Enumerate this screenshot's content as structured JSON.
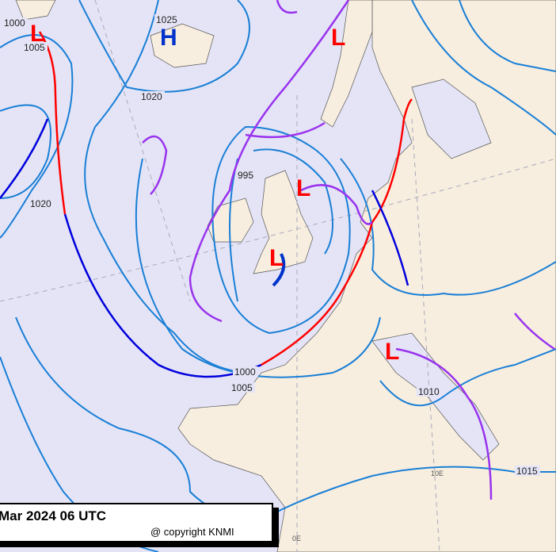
{
  "isobar_labels": [
    "1000",
    "1005",
    "1025",
    "1020",
    "1020",
    "995",
    "1000",
    "1005",
    "1010",
    "1015"
  ],
  "pressure_centers": [
    "L",
    "H",
    "L",
    "L",
    "L",
    "L"
  ],
  "longitude_labels": [
    "0E",
    "10E"
  ],
  "timestamp": "Mar 2024 06 UTC",
  "copyright": "@ copyright KNMI"
}
